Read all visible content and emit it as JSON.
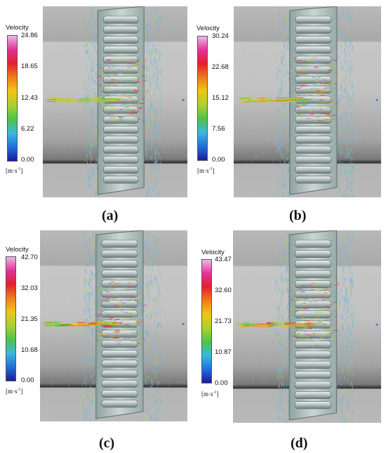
{
  "figure": {
    "legend_title": "Velocity",
    "unit_base": "[m·s",
    "unit_exp": "-1",
    "unit_close": "]",
    "colormap": [
      "#1c1c9c",
      "#1f6fd8",
      "#3cb6e2",
      "#4cc34a",
      "#a7d12f",
      "#f2c418",
      "#f07a1a",
      "#e41e2e",
      "#e0339a",
      "#f0b6e6"
    ],
    "panels": [
      {
        "label": "(a)",
        "ticks": [
          "24.86",
          "18.65",
          "12.43",
          "6.22",
          "0.00"
        ],
        "flow_intensity": 0.55
      },
      {
        "label": "(b)",
        "ticks": [
          "30.24",
          "22.68",
          "15.12",
          "7.56",
          "0.00"
        ],
        "flow_intensity": 0.7
      },
      {
        "label": "(c)",
        "ticks": [
          "42.70",
          "32.03",
          "21.35",
          "10.68",
          "0.00"
        ],
        "flow_intensity": 0.85
      },
      {
        "label": "(d)",
        "ticks": [
          "43.47",
          "32.60",
          "21.73",
          "10.87",
          "0.00"
        ],
        "flow_intensity": 0.9
      }
    ]
  }
}
